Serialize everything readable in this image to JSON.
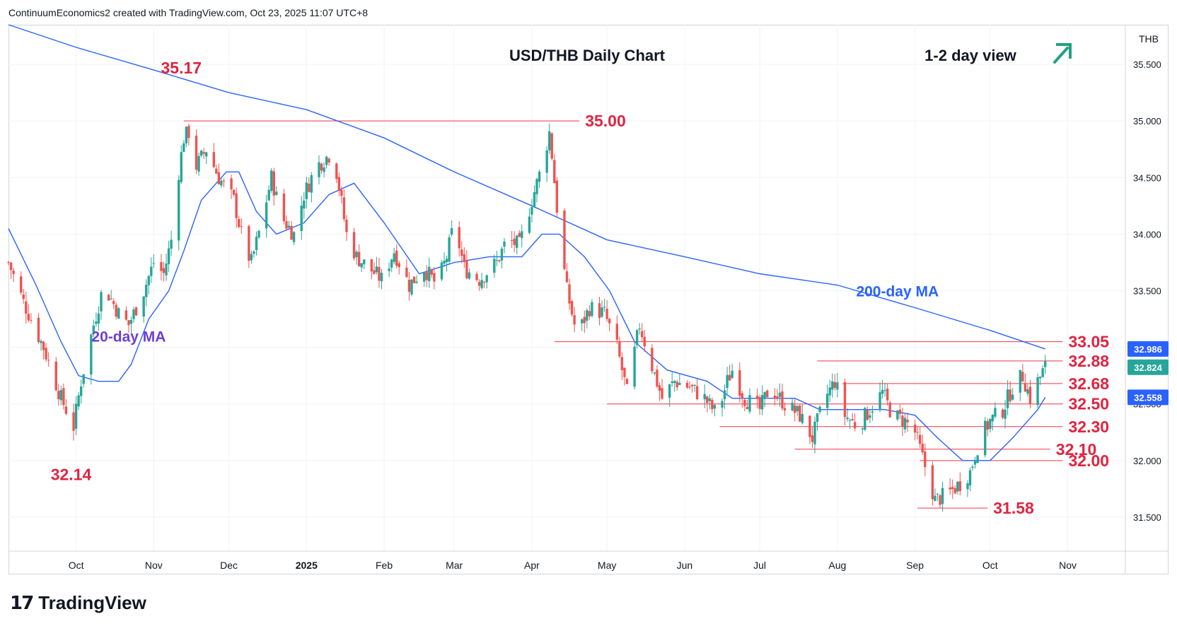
{
  "attribution": "ContinuumEconomics2 created with TradingView.com, Oct 23, 2025 11:07 UTC+8",
  "brand": {
    "logo_glyph": "17",
    "name": "TradingView"
  },
  "chart_data": {
    "type": "candlestick",
    "title": "USD/THB Daily Chart",
    "view_label": "1-2 day view",
    "view_icon": "arrow-up-right-icon",
    "currency": "THB",
    "y_axis_side": "right",
    "ylim": [
      31.2,
      35.85
    ],
    "y_ticks": [
      "35.500",
      "35.000",
      "34.500",
      "34.000",
      "33.500",
      "33.000",
      "32.500",
      "32.000",
      "31.500"
    ],
    "y_tick_values": [
      35.5,
      35.0,
      34.5,
      34.0,
      33.5,
      33.0,
      32.5,
      32.0,
      31.5
    ],
    "x_range": [
      "2024-09-04",
      "2025-11-24"
    ],
    "x_ticks": [
      {
        "label": "Oct",
        "date": "2024-10-01",
        "bold": false
      },
      {
        "label": "Nov",
        "date": "2024-11-01",
        "bold": false
      },
      {
        "label": "Dec",
        "date": "2024-12-01",
        "bold": false
      },
      {
        "label": "2025",
        "date": "2025-01-01",
        "bold": true
      },
      {
        "label": "Feb",
        "date": "2025-02-01",
        "bold": false
      },
      {
        "label": "Mar",
        "date": "2025-03-01",
        "bold": false
      },
      {
        "label": "Apr",
        "date": "2025-04-01",
        "bold": false
      },
      {
        "label": "May",
        "date": "2025-05-01",
        "bold": false
      },
      {
        "label": "Jun",
        "date": "2025-06-01",
        "bold": false
      },
      {
        "label": "Jul",
        "date": "2025-07-01",
        "bold": false
      },
      {
        "label": "Aug",
        "date": "2025-08-01",
        "bold": false
      },
      {
        "label": "Sep",
        "date": "2025-09-01",
        "bold": false
      },
      {
        "label": "Oct",
        "date": "2025-10-01",
        "bold": false
      },
      {
        "label": "Nov",
        "date": "2025-11-01",
        "bold": false
      }
    ],
    "price_path": [
      [
        "2024-09-04",
        33.75
      ],
      [
        "2024-09-10",
        33.4
      ],
      [
        "2024-09-18",
        33.0
      ],
      [
        "2024-09-25",
        32.55
      ],
      [
        "2024-09-30",
        32.3
      ],
      [
        "2024-10-03",
        32.7
      ],
      [
        "2024-10-08",
        33.2
      ],
      [
        "2024-10-12",
        33.55
      ],
      [
        "2024-10-18",
        33.3
      ],
      [
        "2024-10-22",
        33.2
      ],
      [
        "2024-10-28",
        33.5
      ],
      [
        "2024-11-01",
        33.75
      ],
      [
        "2024-11-05",
        33.65
      ],
      [
        "2024-11-08",
        33.95
      ],
      [
        "2024-11-10",
        34.4
      ],
      [
        "2024-11-13",
        34.85
      ],
      [
        "2024-11-15",
        34.9
      ],
      [
        "2024-11-18",
        34.6
      ],
      [
        "2024-11-22",
        34.75
      ],
      [
        "2024-11-27",
        34.5
      ],
      [
        "2024-12-03",
        34.3
      ],
      [
        "2024-12-07",
        33.9
      ],
      [
        "2024-12-10",
        33.75
      ],
      [
        "2024-12-14",
        34.1
      ],
      [
        "2024-12-18",
        34.5
      ],
      [
        "2024-12-22",
        34.15
      ],
      [
        "2024-12-27",
        34.0
      ],
      [
        "2024-12-31",
        34.35
      ],
      [
        "2025-01-05",
        34.6
      ],
      [
        "2025-01-10",
        34.7
      ],
      [
        "2025-01-13",
        34.55
      ],
      [
        "2025-01-17",
        34.0
      ],
      [
        "2025-01-21",
        33.8
      ],
      [
        "2025-01-26",
        33.7
      ],
      [
        "2025-01-31",
        33.6
      ],
      [
        "2025-02-05",
        33.85
      ],
      [
        "2025-02-11",
        33.55
      ],
      [
        "2025-02-17",
        33.7
      ],
      [
        "2025-02-22",
        33.55
      ],
      [
        "2025-02-26",
        33.8
      ],
      [
        "2025-03-01",
        34.1
      ],
      [
        "2025-03-05",
        33.7
      ],
      [
        "2025-03-11",
        33.6
      ],
      [
        "2025-03-18",
        33.75
      ],
      [
        "2025-03-22",
        33.95
      ],
      [
        "2025-03-27",
        33.9
      ],
      [
        "2025-04-01",
        34.3
      ],
      [
        "2025-04-05",
        34.6
      ],
      [
        "2025-04-08",
        34.9
      ],
      [
        "2025-04-09",
        34.7
      ],
      [
        "2025-04-12",
        34.0
      ],
      [
        "2025-04-15",
        33.5
      ],
      [
        "2025-04-19",
        33.1
      ],
      [
        "2025-04-24",
        33.35
      ],
      [
        "2025-04-30",
        33.3
      ],
      [
        "2025-05-05",
        33.0
      ],
      [
        "2025-05-09",
        32.6
      ],
      [
        "2025-05-14",
        33.2
      ],
      [
        "2025-05-18",
        32.9
      ],
      [
        "2025-05-23",
        32.55
      ],
      [
        "2025-05-28",
        32.7
      ],
      [
        "2025-06-03",
        32.65
      ],
      [
        "2025-06-09",
        32.55
      ],
      [
        "2025-06-14",
        32.4
      ],
      [
        "2025-06-18",
        32.7
      ],
      [
        "2025-06-20",
        32.8
      ],
      [
        "2025-06-25",
        32.55
      ],
      [
        "2025-07-01",
        32.45
      ],
      [
        "2025-07-05",
        32.65
      ],
      [
        "2025-07-11",
        32.5
      ],
      [
        "2025-07-17",
        32.4
      ],
      [
        "2025-07-22",
        32.2
      ],
      [
        "2025-07-27",
        32.55
      ],
      [
        "2025-07-31",
        32.7
      ],
      [
        "2025-08-04",
        32.4
      ],
      [
        "2025-08-09",
        32.3
      ],
      [
        "2025-08-14",
        32.45
      ],
      [
        "2025-08-19",
        32.6
      ],
      [
        "2025-08-23",
        32.4
      ],
      [
        "2025-08-28",
        32.35
      ],
      [
        "2025-09-01",
        32.25
      ],
      [
        "2025-09-05",
        31.95
      ],
      [
        "2025-09-09",
        31.65
      ],
      [
        "2025-09-14",
        31.7
      ],
      [
        "2025-09-19",
        31.8
      ],
      [
        "2025-09-23",
        31.9
      ],
      [
        "2025-09-27",
        32.2
      ],
      [
        "2025-10-01",
        32.35
      ],
      [
        "2025-10-06",
        32.45
      ],
      [
        "2025-10-10",
        32.65
      ],
      [
        "2025-10-14",
        32.75
      ],
      [
        "2025-10-17",
        32.55
      ],
      [
        "2025-10-20",
        32.7
      ],
      [
        "2025-10-23",
        32.824
      ]
    ],
    "ma20_path": [
      [
        "2024-09-04",
        34.05
      ],
      [
        "2024-09-15",
        33.55
      ],
      [
        "2024-09-25",
        33.05
      ],
      [
        "2024-10-02",
        32.75
      ],
      [
        "2024-10-10",
        32.7
      ],
      [
        "2024-10-18",
        32.7
      ],
      [
        "2024-10-23",
        32.85
      ],
      [
        "2024-10-30",
        33.25
      ],
      [
        "2024-11-07",
        33.5
      ],
      [
        "2024-11-13",
        33.85
      ],
      [
        "2024-11-20",
        34.3
      ],
      [
        "2024-11-30",
        34.55
      ],
      [
        "2024-12-05",
        34.55
      ],
      [
        "2024-12-12",
        34.2
      ],
      [
        "2024-12-20",
        34.0
      ],
      [
        "2024-12-31",
        34.1
      ],
      [
        "2025-01-10",
        34.35
      ],
      [
        "2025-01-20",
        34.45
      ],
      [
        "2025-02-01",
        34.1
      ],
      [
        "2025-02-15",
        33.65
      ],
      [
        "2025-03-01",
        33.75
      ],
      [
        "2025-03-15",
        33.8
      ],
      [
        "2025-03-28",
        33.8
      ],
      [
        "2025-04-05",
        34.0
      ],
      [
        "2025-04-12",
        34.0
      ],
      [
        "2025-04-22",
        33.8
      ],
      [
        "2025-05-02",
        33.5
      ],
      [
        "2025-05-12",
        33.05
      ],
      [
        "2025-05-25",
        32.8
      ],
      [
        "2025-06-10",
        32.7
      ],
      [
        "2025-06-20",
        32.55
      ],
      [
        "2025-07-01",
        32.55
      ],
      [
        "2025-07-15",
        32.55
      ],
      [
        "2025-07-25",
        32.45
      ],
      [
        "2025-08-05",
        32.45
      ],
      [
        "2025-08-20",
        32.45
      ],
      [
        "2025-09-01",
        32.4
      ],
      [
        "2025-09-10",
        32.2
      ],
      [
        "2025-09-20",
        32.0
      ],
      [
        "2025-10-01",
        32.0
      ],
      [
        "2025-10-10",
        32.2
      ],
      [
        "2025-10-20",
        32.45
      ],
      [
        "2025-10-23",
        32.558
      ]
    ],
    "ma200_path": [
      [
        "2024-09-04",
        35.85
      ],
      [
        "2024-10-01",
        35.65
      ],
      [
        "2024-11-01",
        35.45
      ],
      [
        "2024-12-01",
        35.25
      ],
      [
        "2025-01-01",
        35.1
      ],
      [
        "2025-02-01",
        34.85
      ],
      [
        "2025-03-01",
        34.55
      ],
      [
        "2025-04-01",
        34.25
      ],
      [
        "2025-05-01",
        33.95
      ],
      [
        "2025-06-01",
        33.8
      ],
      [
        "2025-07-01",
        33.65
      ],
      [
        "2025-08-01",
        33.55
      ],
      [
        "2025-09-01",
        33.35
      ],
      [
        "2025-10-01",
        33.15
      ],
      [
        "2025-10-23",
        32.986
      ]
    ],
    "series": [
      {
        "name": "20-day MA",
        "color": "#2962ff",
        "last": "32.558"
      },
      {
        "name": "200-day MA",
        "color": "#2962ff",
        "last": "32.986"
      }
    ],
    "last_price": {
      "value": 32.824,
      "label": "32.824",
      "color": "#26a69a"
    },
    "levels": [
      {
        "value": 35.0,
        "label": "35.00",
        "from": "2024-11-13",
        "to": "2025-04-20"
      },
      {
        "value": 33.05,
        "label": "33.05",
        "from": "2025-04-10",
        "to": "2025-10-30"
      },
      {
        "value": 32.88,
        "label": "32.88",
        "from": "2025-07-24",
        "to": "2025-10-30"
      },
      {
        "value": 32.68,
        "label": "32.68",
        "from": "2025-08-03",
        "to": "2025-10-30"
      },
      {
        "value": 32.5,
        "label": "32.50",
        "from": "2025-05-01",
        "to": "2025-10-30"
      },
      {
        "value": 32.3,
        "label": "32.30",
        "from": "2025-06-15",
        "to": "2025-10-30"
      },
      {
        "value": 32.1,
        "label": "32.10",
        "from": "2025-07-15",
        "to": "2025-10-25"
      },
      {
        "value": 32.0,
        "label": "32.00",
        "from": "2025-09-03",
        "to": "2025-10-30"
      },
      {
        "value": 31.58,
        "label": "31.58",
        "from": "2025-09-02",
        "to": "2025-09-30"
      }
    ],
    "annotations": [
      {
        "text": "35.17",
        "date": "2024-11-12",
        "value": 35.17,
        "kind": "level"
      },
      {
        "text": "32.14",
        "date": "2024-09-29",
        "value": 32.14,
        "kind": "level"
      },
      {
        "text": "20-day MA",
        "date": "2024-10-22",
        "value": 33.05,
        "kind": "ma20"
      },
      {
        "text": "200-day MA",
        "date": "2025-08-25",
        "value": 33.45,
        "kind": "ma200"
      }
    ],
    "colors": {
      "up": "#26a69a",
      "down": "#ef5350",
      "ma": "#2962ff",
      "level": "#f23645",
      "level_text": "#e02440",
      "ma20_label": "#6b3fd6",
      "ma200_label": "#2962ff",
      "arrow": "#22a082",
      "grid": "#f0f3fa",
      "axis_text": "#131722"
    }
  }
}
